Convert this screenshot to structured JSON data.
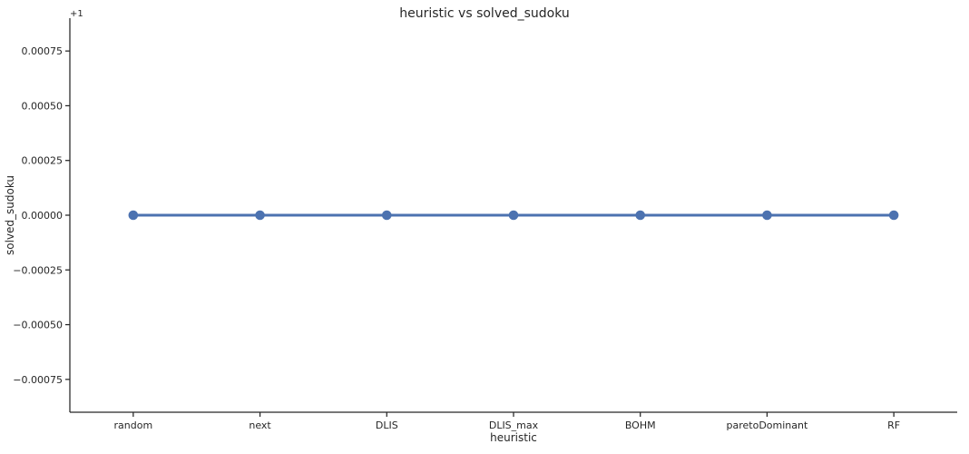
{
  "chart_data": {
    "type": "line",
    "title": "heuristic vs solved_sudoku",
    "xlabel": "heuristic",
    "ylabel": "solved_sudoku",
    "y_offset_label": "+1",
    "categories": [
      "random",
      "next",
      "DLIS",
      "DLIS_max",
      "BOHM",
      "paretoDominant",
      "RF"
    ],
    "series": [
      {
        "values": [
          1,
          1,
          1,
          1,
          1,
          1,
          1
        ]
      }
    ],
    "y_offset": 1,
    "ylim": [
      -0.0009,
      0.0009
    ],
    "y_ticks": [
      0.00075,
      0.0005,
      0.00025,
      0.0,
      -0.00025,
      -0.0005,
      -0.00075
    ],
    "y_tick_labels": [
      "0.00075",
      "0.00050",
      "0.00025",
      "0.00000",
      "−0.00025",
      "−0.00050",
      "−0.00075"
    ],
    "grid": false,
    "marker": "circle",
    "color": "#4c72b0",
    "axis_color": "#262626"
  }
}
